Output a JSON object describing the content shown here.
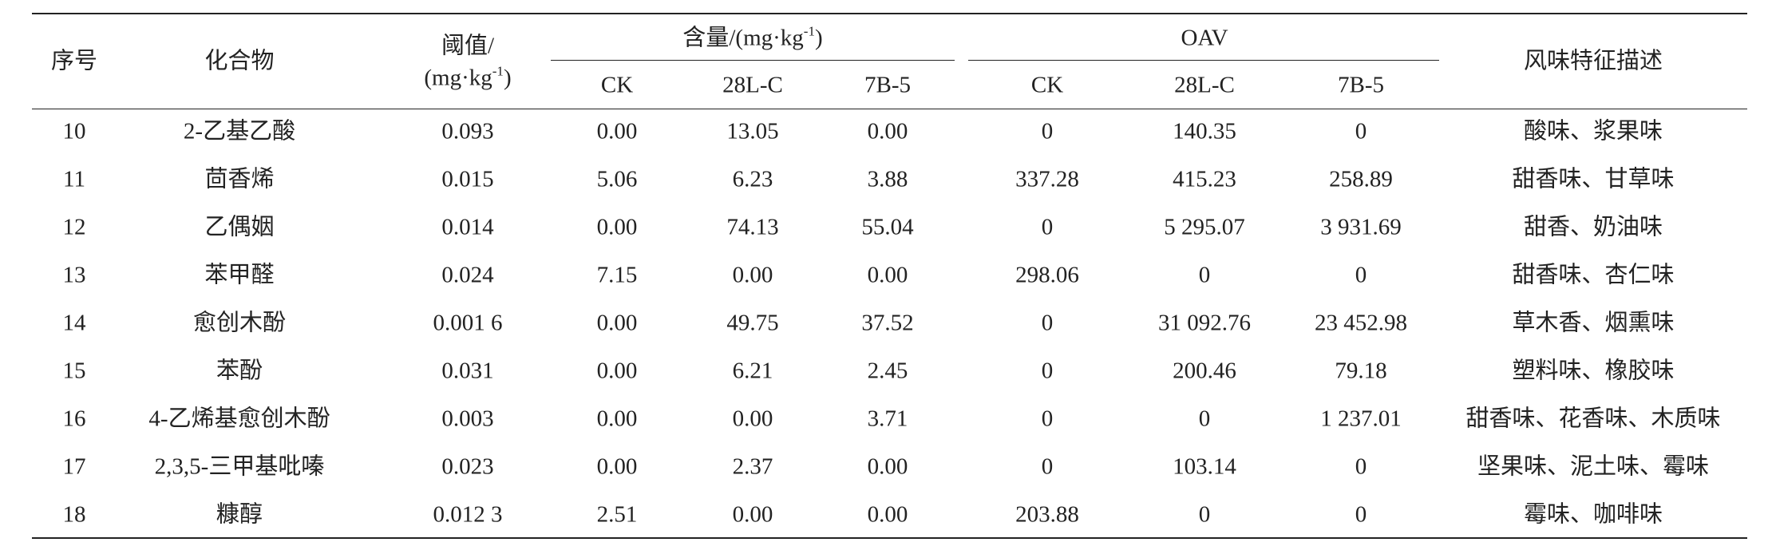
{
  "table": {
    "header": {
      "index": "序号",
      "compound": "化合物",
      "threshold": {
        "line1": "阈值/",
        "prefix": "(mg·kg",
        "sup": "-1",
        "suffix": ")"
      },
      "content": {
        "prefix": "含量/(mg·kg",
        "sup": "-1",
        "suffix": ")"
      },
      "oav": "OAV",
      "flavor": "风味特征描述",
      "content_sub": [
        "CK",
        "28L-C",
        "7B-5"
      ],
      "oav_sub": [
        "CK",
        "28L-C",
        "7B-5"
      ]
    },
    "rows": [
      [
        "10",
        "2-乙基乙酸",
        "0.093",
        "0.00",
        "13.05",
        "0.00",
        "0",
        "140.35",
        "0",
        "酸味、浆果味"
      ],
      [
        "11",
        "茴香烯",
        "0.015",
        "5.06",
        "6.23",
        "3.88",
        "337.28",
        "415.23",
        "258.89",
        "甜香味、甘草味"
      ],
      [
        "12",
        "乙偶姻",
        "0.014",
        "0.00",
        "74.13",
        "55.04",
        "0",
        "5 295.07",
        "3 931.69",
        "甜香、奶油味"
      ],
      [
        "13",
        "苯甲醛",
        "0.024",
        "7.15",
        "0.00",
        "0.00",
        "298.06",
        "0",
        "0",
        "甜香味、杏仁味"
      ],
      [
        "14",
        "愈创木酚",
        "0.001 6",
        "0.00",
        "49.75",
        "37.52",
        "0",
        "31 092.76",
        "23 452.98",
        "草木香、烟熏味"
      ],
      [
        "15",
        "苯酚",
        "0.031",
        "0.00",
        "6.21",
        "2.45",
        "0",
        "200.46",
        "79.18",
        "塑料味、橡胶味"
      ],
      [
        "16",
        "4-乙烯基愈创木酚",
        "0.003",
        "0.00",
        "0.00",
        "3.71",
        "0",
        "0",
        "1 237.01",
        "甜香味、花香味、木质味"
      ],
      [
        "17",
        "2,3,5-三甲基吡嗪",
        "0.023",
        "0.00",
        "2.37",
        "0.00",
        "0",
        "103.14",
        "0",
        "坚果味、泥土味、霉味"
      ],
      [
        "18",
        "糠醇",
        "0.012 3",
        "2.51",
        "0.00",
        "0.00",
        "203.88",
        "0",
        "0",
        "霉味、咖啡味"
      ]
    ]
  }
}
